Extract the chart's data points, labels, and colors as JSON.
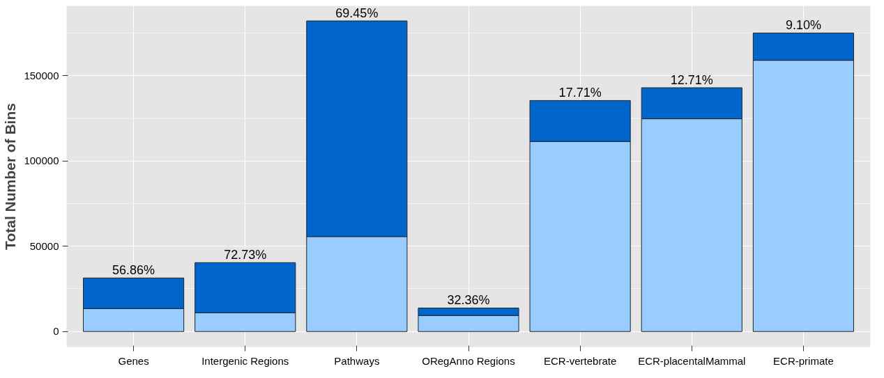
{
  "chart_data": {
    "type": "bar",
    "stacked": true,
    "ylabel": "Total Number of Bins",
    "categories": [
      "Genes",
      "Intergenic Regions",
      "Pathways",
      "ORegAnno Regions",
      "ECR-vertebrate",
      "ECR-placentalMammal",
      "ECR-primate"
    ],
    "series": [
      {
        "color": "#99ccff",
        "values": [
          13500,
          11000,
          55700,
          9400,
          111500,
          124800,
          159100
        ]
      },
      {
        "color": "#0066cc",
        "values": [
          17900,
          29400,
          126500,
          4400,
          24000,
          18200,
          16000
        ]
      }
    ],
    "ylim": [
      -9100,
      191000
    ],
    "yticks": [
      0,
      50000,
      100000,
      150000
    ],
    "grid": true,
    "annotations": [
      {
        "text": "56.86%",
        "x": "Genes",
        "y": 31400
      },
      {
        "text": "72.73%",
        "x": "Intergenic Regions",
        "y": 40400
      },
      {
        "text": "69.45%",
        "x": "Pathways",
        "y": 182200
      },
      {
        "text": "32.36%",
        "x": "ORegAnno Regions",
        "y": 13800
      },
      {
        "text": "17.71%",
        "x": "ECR-vertebrate",
        "y": 135500
      },
      {
        "text": "12.71%",
        "x": "ECR-placentalMammal",
        "y": 143000
      },
      {
        "text": "9.10%",
        "x": "ECR-primate",
        "y": 175100
      }
    ]
  }
}
